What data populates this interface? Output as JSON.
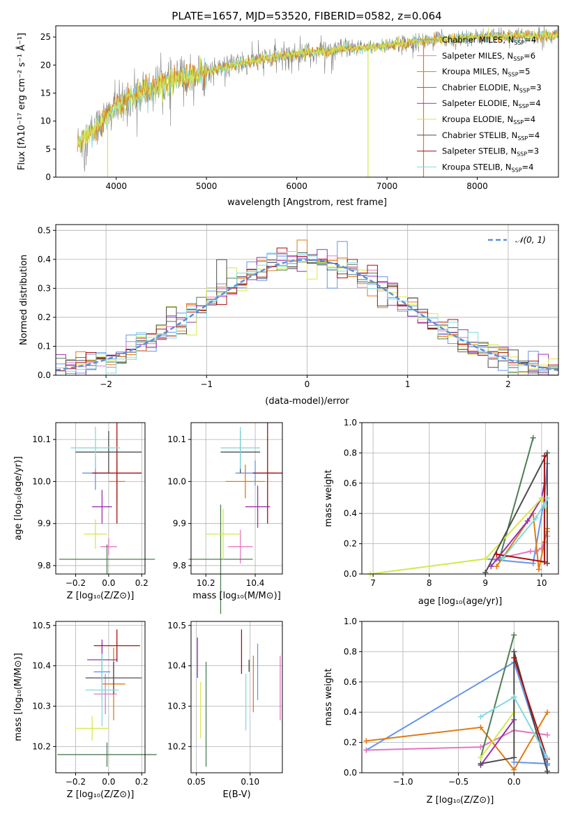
{
  "title": "PLATE=1657, MJD=53520, FIBERID=0582, z=0.064",
  "colors": [
    "#6495ed",
    "#e377c2",
    "#e07b10",
    "#4e7d54",
    "#9b2fae",
    "#d4e84a",
    "#4d4d4d",
    "#aa0d0d",
    "#7fdbe0"
  ],
  "chart_data": [
    {
      "type": "line",
      "panel": "spectrum",
      "xlabel": "wavelength [Angstrom, rest frame]",
      "ylabel": "Flux [fλ10⁻¹⁷ erg cm⁻² s⁻¹ Å⁻¹]",
      "xlim": [
        3330,
        8900
      ],
      "ylim": [
        0,
        27
      ],
      "xticks": [
        "4000",
        "5000",
        "6000",
        "7000",
        "8000"
      ],
      "yticks": [
        "0",
        "5",
        "10",
        "15",
        "20",
        "25"
      ],
      "legend_placement": "right",
      "legend": [
        {
          "base": "Chabrier MILES, N",
          "sub": "SSP",
          "tail": "=4"
        },
        {
          "base": "Salpeter MILES, N",
          "sub": "SSP",
          "tail": "=6"
        },
        {
          "base": "Kroupa MILES, N",
          "sub": "SSP",
          "tail": "=5"
        },
        {
          "base": "Chabrier ELODIE, N",
          "sub": "SSP",
          "tail": "=3"
        },
        {
          "base": "Salpeter ELODIE, N",
          "sub": "SSP",
          "tail": "=4"
        },
        {
          "base": "Kroupa ELODIE, N",
          "sub": "SSP",
          "tail": "=4"
        },
        {
          "base": "Chabrier STELIB, N",
          "sub": "SSP",
          "tail": "=4"
        },
        {
          "base": "Salpeter STELIB, N",
          "sub": "SSP",
          "tail": "=3"
        },
        {
          "base": "Kroupa STELIB, N",
          "sub": "SSP",
          "tail": "=4"
        }
      ],
      "continuum": [
        [
          3570,
          6
        ],
        [
          3700,
          7.5
        ],
        [
          3900,
          11
        ],
        [
          4000,
          12.5
        ],
        [
          4200,
          14.5
        ],
        [
          4500,
          16.5
        ],
        [
          4800,
          18
        ],
        [
          5000,
          18.8
        ],
        [
          5300,
          20
        ],
        [
          5600,
          21
        ],
        [
          6000,
          22
        ],
        [
          6500,
          22.8
        ],
        [
          7000,
          23.5
        ],
        [
          7500,
          24.5
        ],
        [
          8000,
          25
        ],
        [
          8900,
          25.3
        ]
      ],
      "dropouts": [
        [
          3905,
          0,
          "#d4e84a"
        ],
        [
          6790,
          0,
          "#d4e84a"
        ],
        [
          7405,
          0,
          "#e07b10"
        ]
      ]
    },
    {
      "type": "histogram",
      "panel": "residuals",
      "xlabel": "(data-model)/error",
      "ylabel": "Normed distribution",
      "xlim": [
        -2.5,
        2.5
      ],
      "ylim": [
        0,
        0.52
      ],
      "xticks": [
        "−2",
        "−1",
        "0",
        "1",
        "2"
      ],
      "yticks": [
        "0.0",
        "0.1",
        "0.2",
        "0.3",
        "0.4",
        "0.5"
      ],
      "legend": "𝒩(0, 1)",
      "gaussian_color": "#5b8fd9"
    },
    {
      "type": "scatter",
      "panel": "age-vs-Z",
      "xlabel": "Z [log₁₀(Z/Z⊙)]",
      "ylabel": "age  [log₁₀(age/yr)]",
      "xlim": [
        -0.32,
        0.22
      ],
      "ylim": [
        9.78,
        10.14
      ],
      "xticks": [
        -0.2,
        0.0,
        0.2
      ],
      "xticklabels": [
        "−0.2",
        "0.0",
        "0.2"
      ],
      "yticks": [
        9.8,
        9.9,
        10.0,
        10.1
      ],
      "yticklabels": [
        "9.8",
        "9.9",
        "10.0",
        "10.1"
      ],
      "points": [
        {
          "x": -0.08,
          "xe": 0.08,
          "y": 10.02,
          "ye": 0.04
        },
        {
          "x": 0.0,
          "xe": 0.05,
          "y": 9.845,
          "ye": 0.02
        },
        {
          "x": 0.05,
          "xe": 0.05,
          "y": 10.0,
          "ye": 0.05
        },
        {
          "x": -0.01,
          "xe": 0.29,
          "y": 9.815,
          "ye": 0.035
        },
        {
          "x": -0.04,
          "xe": 0.06,
          "y": 9.94,
          "ye": 0.04
        },
        {
          "x": -0.08,
          "xe": 0.07,
          "y": 9.875,
          "ye": 0.035
        },
        {
          "x": 0.0,
          "xe": 0.2,
          "y": 10.07,
          "ye": 0.05
        },
        {
          "x": 0.05,
          "xe": 0.15,
          "y": 10.02,
          "ye": 0.12
        },
        {
          "x": -0.08,
          "xe": 0.15,
          "y": 10.08,
          "ye": 0.05
        }
      ]
    },
    {
      "type": "scatter",
      "panel": "age-vs-mass",
      "xlabel": "mass [log₁₀(M/M⊙)]",
      "ylabel": "",
      "xlim": [
        10.14,
        10.51
      ],
      "ylim": [
        9.78,
        10.14
      ],
      "xticks": [
        10.2,
        10.4
      ],
      "xticklabels": [
        "10.2",
        "10.4"
      ],
      "yticks": [
        9.8,
        9.9,
        10.0,
        10.1
      ],
      "yticklabels": [
        "9.8",
        "9.9",
        "10.0",
        "10.1"
      ],
      "points": [
        {
          "x": 10.4,
          "xe": 0.08,
          "y": 10.02,
          "ye": 0.03
        },
        {
          "x": 10.34,
          "xe": 0.05,
          "y": 9.845,
          "ye": 0.04
        },
        {
          "x": 10.36,
          "xe": 0.08,
          "y": 10.0,
          "ye": 0.04
        },
        {
          "x": 10.26,
          "xe": 0.13,
          "y": 9.815,
          "ye": 0.13
        },
        {
          "x": 10.41,
          "xe": 0.05,
          "y": 9.94,
          "ye": 0.05
        },
        {
          "x": 10.27,
          "xe": 0.07,
          "y": 9.875,
          "ye": 0.06
        },
        {
          "x": 10.34,
          "xe": 0.08,
          "y": 10.07,
          "ye": 0.05
        },
        {
          "x": 10.45,
          "xe": 0.06,
          "y": 10.02,
          "ye": 0.12
        },
        {
          "x": 10.34,
          "xe": 0.08,
          "y": 10.08,
          "ye": 0.05
        }
      ]
    },
    {
      "type": "line",
      "panel": "weight-vs-age",
      "xlabel": "age  [log₁₀(age/yr)]",
      "ylabel": "mass weight",
      "xlim": [
        6.8,
        10.3
      ],
      "ylim": [
        0,
        1
      ],
      "xticks": [
        7,
        8,
        9,
        10
      ],
      "xticklabels": [
        "7",
        "8",
        "9",
        "10"
      ],
      "yticks": [
        0,
        0.2,
        0.4,
        0.6,
        0.8,
        1.0
      ],
      "yticklabels": [
        "0.0",
        "0.2",
        "0.4",
        "0.6",
        "0.8",
        "1.0"
      ],
      "series": [
        {
          "values": [
            [
              9.0,
              0.1
            ],
            [
              9.85,
              0.07
            ],
            [
              10.05,
              0.5
            ],
            [
              10.1,
              0.73
            ]
          ]
        },
        {
          "values": [
            [
              9.2,
              0.1
            ],
            [
              9.8,
              0.15
            ],
            [
              9.9,
              0.15
            ],
            [
              10.0,
              0.17
            ],
            [
              10.1,
              0.28
            ],
            [
              10.1,
              0.25
            ]
          ]
        },
        {
          "values": [
            [
              9.2,
              0.05
            ],
            [
              9.85,
              0.4
            ],
            [
              9.95,
              0.03
            ],
            [
              10.05,
              0.21
            ],
            [
              10.1,
              0.3
            ]
          ]
        },
        {
          "values": [
            [
              9.25,
              0.1
            ],
            [
              9.85,
              0.9
            ]
          ]
        },
        {
          "values": [
            [
              9.1,
              0.05
            ],
            [
              9.75,
              0.35
            ],
            [
              10.0,
              0.5
            ],
            [
              10.05,
              0.6
            ]
          ]
        },
        {
          "values": [
            [
              6.95,
              0.0
            ],
            [
              9.0,
              0.1
            ],
            [
              10.0,
              0.5
            ],
            [
              10.1,
              0.4
            ]
          ]
        },
        {
          "values": [
            [
              9.0,
              0.01
            ],
            [
              10.1,
              0.8
            ],
            [
              10.1,
              0.07
            ]
          ]
        },
        {
          "values": [
            [
              9.2,
              0.13
            ],
            [
              10.05,
              0.08
            ],
            [
              10.05,
              0.78
            ]
          ]
        },
        {
          "values": [
            [
              9.3,
              0.1
            ],
            [
              9.9,
              0.37
            ],
            [
              10.1,
              0.5
            ],
            [
              10.05,
              0.45
            ]
          ]
        }
      ]
    },
    {
      "type": "scatter",
      "panel": "mass-vs-Z",
      "xlabel": "Z [log₁₀(Z/Z⊙)]",
      "ylabel": "mass [log₁₀(M/M⊙)]",
      "xlim": [
        -0.32,
        0.22
      ],
      "ylim": [
        10.135,
        10.51
      ],
      "xticks": [
        -0.2,
        0.0,
        0.2
      ],
      "xticklabels": [
        "−0.2",
        "0.0",
        "0.2"
      ],
      "yticks": [
        10.2,
        10.3,
        10.4,
        10.5
      ],
      "yticklabels": [
        "10.2",
        "10.3",
        "10.4",
        "10.5"
      ],
      "points": [
        {
          "x": -0.04,
          "xe": 0.05,
          "y": 10.385,
          "ye": 0.07
        },
        {
          "x": -0.02,
          "xe": 0.07,
          "y": 10.33,
          "ye": 0.05
        },
        {
          "x": 0.03,
          "xe": 0.07,
          "y": 10.355,
          "ye": 0.09
        },
        {
          "x": -0.01,
          "xe": 0.3,
          "y": 10.18,
          "ye": 0.03
        },
        {
          "x": -0.04,
          "xe": 0.09,
          "y": 10.415,
          "ye": 0.05
        },
        {
          "x": -0.1,
          "xe": 0.1,
          "y": 10.245,
          "ye": 0.03
        },
        {
          "x": 0.03,
          "xe": 0.17,
          "y": 10.37,
          "ye": 0.04
        },
        {
          "x": 0.05,
          "xe": 0.14,
          "y": 10.45,
          "ye": 0.04
        },
        {
          "x": -0.04,
          "xe": 0.1,
          "y": 10.34,
          "ye": 0.09
        }
      ]
    },
    {
      "type": "scatter",
      "panel": "mass-vs-ebv",
      "xlabel": "E(B-V)",
      "ylabel": "",
      "xlim": [
        0.045,
        0.13
      ],
      "ylim": [
        10.135,
        10.51
      ],
      "xticks": [
        0.05,
        0.1
      ],
      "xticklabels": [
        "0.05",
        "0.10"
      ],
      "yticks": [
        10.2,
        10.3,
        10.4,
        10.5
      ],
      "yticklabels": [
        "10.2",
        "10.3",
        "10.4",
        "10.5"
      ],
      "points": [
        {
          "x": 0.107,
          "xe": 0,
          "y": 10.385,
          "ye": 0.07
        },
        {
          "x": 0.128,
          "xe": 0,
          "y": 10.345,
          "ye": 0.08
        },
        {
          "x": 0.103,
          "xe": 0,
          "y": 10.355,
          "ye": 0.07
        },
        {
          "x": 0.059,
          "xe": 0,
          "y": 10.28,
          "ye": 0.13
        },
        {
          "x": 0.051,
          "xe": 0,
          "y": 10.42,
          "ye": 0.05
        },
        {
          "x": 0.054,
          "xe": 0,
          "y": 10.29,
          "ye": 0.07
        },
        {
          "x": 0.099,
          "xe": 0,
          "y": 10.4,
          "ye": 0.015
        },
        {
          "x": 0.092,
          "xe": 0,
          "y": 10.435,
          "ye": 0.055
        },
        {
          "x": 0.096,
          "xe": 0,
          "y": 10.31,
          "ye": 0.07
        }
      ]
    },
    {
      "type": "line",
      "panel": "weight-vs-Z",
      "xlabel": "Z [log₁₀(Z/Z⊙)]",
      "ylabel": "mass weight",
      "xlim": [
        -1.37,
        0.4
      ],
      "ylim": [
        0,
        1
      ],
      "xticks": [
        -1.0,
        -0.5,
        0.0
      ],
      "xticklabels": [
        "−1.0",
        "−0.5",
        "0.0"
      ],
      "yticks": [
        0,
        0.2,
        0.4,
        0.6,
        0.8,
        1.0
      ],
      "yticklabels": [
        "0.0",
        "0.2",
        "0.4",
        "0.6",
        "0.8",
        "1.0"
      ],
      "series": [
        {
          "values": [
            [
              -1.33,
              0.15
            ],
            [
              0.0,
              0.73
            ],
            [
              0.3,
              0.05
            ],
            [
              0.3,
              0.06
            ],
            [
              0.0,
              0.07
            ]
          ]
        },
        {
          "values": [
            [
              -1.33,
              0.15
            ],
            [
              -0.3,
              0.17
            ],
            [
              0.0,
              0.28
            ],
            [
              0.3,
              0.25
            ]
          ]
        },
        {
          "values": [
            [
              -1.33,
              0.21
            ],
            [
              -0.3,
              0.3
            ],
            [
              0.0,
              0.02
            ],
            [
              0.3,
              0.4
            ]
          ]
        },
        {
          "values": [
            [
              -0.3,
              0.1
            ],
            [
              0.0,
              0.91
            ]
          ]
        },
        {
          "values": [
            [
              -0.3,
              0.05
            ],
            [
              0.0,
              0.35
            ],
            [
              0.0,
              0.5
            ]
          ]
        },
        {
          "values": [
            [
              -0.3,
              0.1
            ],
            [
              0.0,
              0.4
            ],
            [
              0.0,
              0.5
            ]
          ]
        },
        {
          "values": [
            [
              -0.3,
              0.06
            ],
            [
              0.0,
              0.1
            ],
            [
              0.0,
              0.8
            ],
            [
              0.3,
              0.01
            ]
          ]
        },
        {
          "values": [
            [
              0.0,
              0.76
            ],
            [
              0.3,
              0.09
            ]
          ]
        },
        {
          "values": [
            [
              -0.3,
              0.37
            ],
            [
              0.0,
              0.5
            ],
            [
              0.3,
              0.1
            ]
          ]
        }
      ]
    }
  ]
}
